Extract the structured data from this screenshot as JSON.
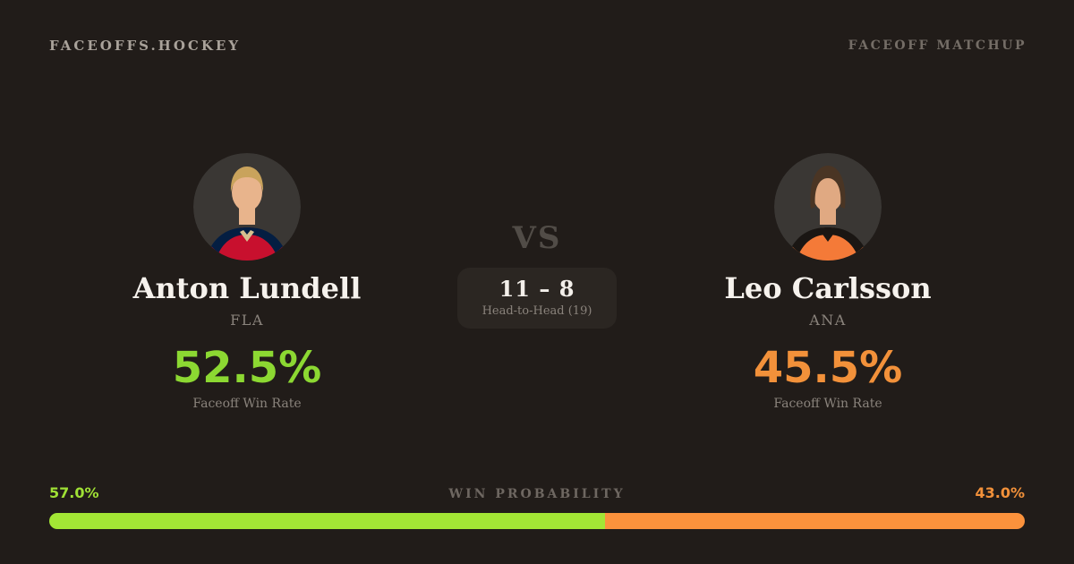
{
  "header": {
    "brand": "FACEOFFS.HOCKEY",
    "page_label": "FACEOFF MATCHUP"
  },
  "players": [
    {
      "name": "Anton Lundell",
      "team": "FLA",
      "faceoff_win_rate": "52.5%",
      "stat_caption": "Faceoff Win Rate",
      "accent_color": "#8CD832",
      "avatar": {
        "icon": "player-headshot-lundell",
        "circle_color": "#3A3734",
        "jersey_color": "#C8102E",
        "yoke_color": "#041E42",
        "collar_color": "#D6C08F",
        "skin_color": "#E8B48C",
        "hair_color": "#C9A35C"
      }
    },
    {
      "name": "Leo Carlsson",
      "team": "ANA",
      "faceoff_win_rate": "45.5%",
      "stat_caption": "Faceoff Win Rate",
      "accent_color": "#F2913A",
      "avatar": {
        "icon": "player-headshot-carlsson",
        "circle_color": "#3A3734",
        "jersey_color": "#F47A38",
        "yoke_color": "#1A1613",
        "collar_color": "#1A1613",
        "skin_color": "#E0A982",
        "hair_color": "#4A3524"
      }
    }
  ],
  "matchup": {
    "vs_label": "VS",
    "head_to_head_score": "11 – 8",
    "head_to_head_caption": "Head-to-Head (19)"
  },
  "win_probability": {
    "title": "WIN PROBABILITY",
    "left_percent_label": "57.0%",
    "right_percent_label": "43.0%",
    "left_value": 57.0,
    "right_value": 43.0,
    "left_label_color": "#9FE035",
    "right_label_color": "#F2913A",
    "bar_left_color": "#A3E635",
    "bar_right_color": "#FB923C"
  },
  "colors": {
    "background": "#211C19"
  }
}
